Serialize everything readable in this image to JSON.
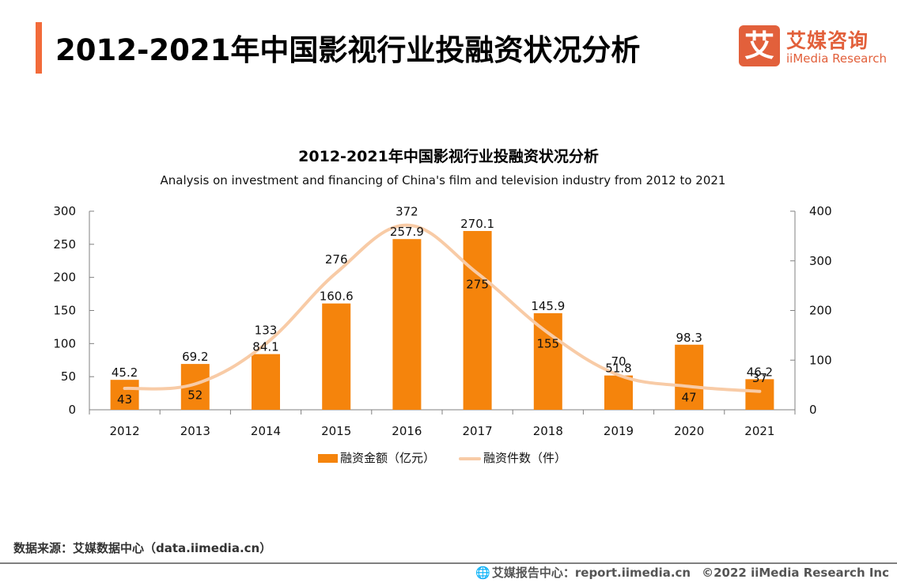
{
  "header": {
    "title": "2012-2021年中国影视行业投融资状况分析",
    "logo_glyph": "艾",
    "logo_cn": "艾媒咨询",
    "logo_en": "iiMedia Research"
  },
  "colors": {
    "accent": "#f26b3a",
    "brand": "#e2603b",
    "bar": "#f5840c",
    "line": "#f8cba6",
    "axis": "#808080"
  },
  "chart_data": {
    "type": "bar",
    "title": "2012-2021年中国影视行业投融资状况分析",
    "subtitle": "Analysis on investment and financing of China's film and television industry from 2012 to 2021",
    "categories": [
      "2012",
      "2013",
      "2014",
      "2015",
      "2016",
      "2017",
      "2018",
      "2019",
      "2020",
      "2021"
    ],
    "series": [
      {
        "name": "融资金额（亿元）",
        "type": "bar",
        "axis": "left",
        "values": [
          45.2,
          69.2,
          84.1,
          160.6,
          257.9,
          270.1,
          145.9,
          51.8,
          98.3,
          46.2
        ]
      },
      {
        "name": "融资件数（件）",
        "type": "line",
        "axis": "right",
        "values": [
          43,
          52,
          133,
          276,
          372,
          275,
          155,
          70,
          47,
          37
        ]
      }
    ],
    "y_left": {
      "min": 0,
      "max": 300,
      "ticks": [
        0,
        50,
        100,
        150,
        200,
        250,
        300
      ]
    },
    "y_right": {
      "min": 0,
      "max": 400,
      "ticks": [
        0,
        100,
        200,
        300,
        400
      ]
    },
    "xlabel": "",
    "ylabel": "",
    "grid": false,
    "legend_position": "bottom"
  },
  "legend": {
    "bar_label": "融资金额（亿元）",
    "line_label": "融资件数（件）"
  },
  "footer": {
    "source": "数据来源：艾媒数据中心（data.iimedia.cn）",
    "report_center": "艾媒报告中心：report.iimedia.cn",
    "copyright": "©2022  iiMedia Research  Inc"
  }
}
